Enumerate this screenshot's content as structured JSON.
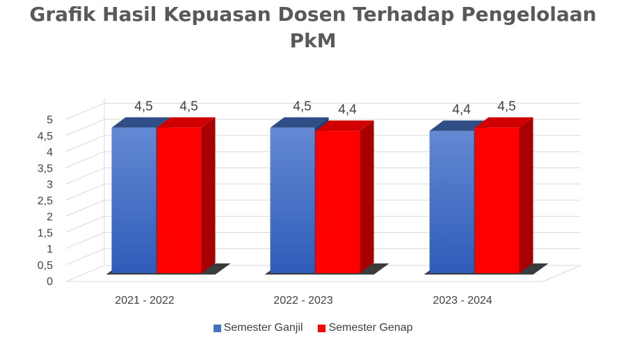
{
  "chart_data": {
    "type": "bar",
    "title": "Grafik Hasil Kepuasan Dosen Terhadap Pengelolaan PkM",
    "categories": [
      "2021 - 2022",
      "2022 - 2023",
      "2023 - 2024"
    ],
    "series": [
      {
        "name": "Semester Ganjil",
        "values": [
          4.5,
          4.5,
          4.4
        ],
        "labels": [
          "4,5",
          "4,5",
          "4,4"
        ],
        "color": "#4472C4"
      },
      {
        "name": "Semester Genap",
        "values": [
          4.5,
          4.4,
          4.5
        ],
        "labels": [
          "4,5",
          "4,4",
          "4,5"
        ],
        "color": "#FF0000"
      }
    ],
    "yticks": [
      "0",
      "0,5",
      "1",
      "1,5",
      "2",
      "2,5",
      "3",
      "3,5",
      "4",
      "4,5",
      "5"
    ],
    "ylim": [
      0,
      5
    ],
    "grid": true,
    "legend": "bottom",
    "style": "3d-clustered-column"
  }
}
